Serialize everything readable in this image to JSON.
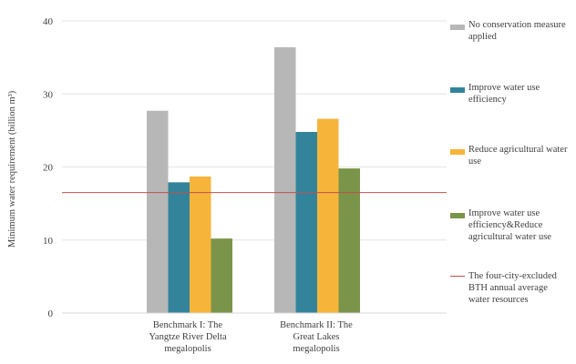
{
  "chart_data": {
    "type": "bar",
    "title": "",
    "ylabel": "Minimum water requirement (billion m³)",
    "xlabel": "",
    "ylim": [
      0,
      40
    ],
    "yticks": [
      "0",
      "10",
      "20",
      "30",
      "40"
    ],
    "grid": true,
    "legend_position": "right",
    "categories": [
      "Benchmark I: The Yangtze River Delta megalopolis",
      "Benchmark II: The Great Lakes megalopolis"
    ],
    "category_lines": [
      [
        "Benchmark I: The",
        "Yangtze River Delta",
        "megalopolis"
      ],
      [
        "Benchmark II: The",
        "Great Lakes",
        "megalopolis"
      ]
    ],
    "series": [
      {
        "name": "No conservation measure applied",
        "lines": [
          "No conservation measure",
          "applied"
        ],
        "color": "#b7b7b7",
        "values": [
          27.7,
          36.4
        ]
      },
      {
        "name": "Improve water use efficiency",
        "lines": [
          "Improve water use",
          "efficiency"
        ],
        "color": "#33849b",
        "values": [
          17.9,
          24.8
        ]
      },
      {
        "name": "Reduce agricultural water use",
        "lines": [
          "Reduce agricultural water",
          "use"
        ],
        "color": "#f6b53a",
        "values": [
          18.7,
          26.6
        ]
      },
      {
        "name": "Improve water use efficiency&Reduce agricultural water use",
        "lines": [
          "Improve water use",
          "efficiency&Reduce",
          "agricultural water use"
        ],
        "color": "#7a9449",
        "values": [
          10.2,
          19.8
        ]
      }
    ],
    "reference_line": {
      "name": "The four-city-excluded BTH annual average water resources",
      "lines": [
        "The four-city-excluded",
        "BTH annual average",
        "water resources"
      ],
      "color": "#c0504d",
      "value": 16.5
    }
  }
}
